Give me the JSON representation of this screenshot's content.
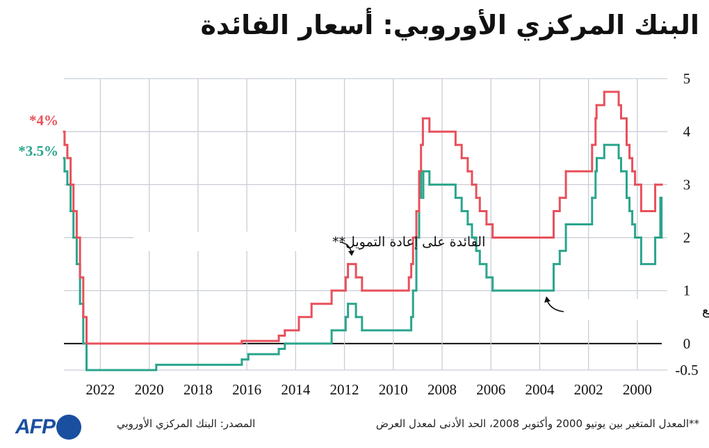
{
  "title": "البنك المركزي الأوروبي: أسعار الفائدة",
  "footer": {
    "source": "المصدر: البنك المركزي الأوروبي",
    "note": "**المعدل المتغير بين يونيو 2000 وأكتوبر 2008، الحد الأدنى لمعدل العرض",
    "logo": "AFP"
  },
  "colors": {
    "refi": "#e8505b",
    "deposit": "#2aa58c",
    "grid": "#c9cdd6",
    "zero": "#111111"
  },
  "chart_data": {
    "type": "line",
    "step": true,
    "x_reversed": true,
    "xlim": [
      "1999-01-01",
      "2023-06-30"
    ],
    "ylim": [
      -0.5,
      5
    ],
    "grid": true,
    "x_ticks": [
      "2022",
      "2020",
      "2018",
      "2016",
      "2014",
      "2012",
      "2010",
      "2008",
      "2006",
      "2004",
      "2002",
      "2000"
    ],
    "y_ticks": [
      "5",
      "4",
      "3",
      "2",
      "1",
      "0",
      "-0.5"
    ],
    "y_axis_side": "right",
    "annotations": {
      "refi": "الفائدة على إعادة التمويل**",
      "deposit": "الفائدة على الودائع",
      "refi_end": "*4%",
      "deposit_end": "*3.5%"
    },
    "series": [
      {
        "key": "refi",
        "name": "الفائدة على إعادة التمويل**",
        "points": [
          [
            "1999-01-01",
            3.0
          ],
          [
            "1999-04-09",
            2.5
          ],
          [
            "1999-11-05",
            3.0
          ],
          [
            "2000-02-04",
            3.25
          ],
          [
            "2000-03-17",
            3.5
          ],
          [
            "2000-04-28",
            3.75
          ],
          [
            "2000-06-09",
            4.25
          ],
          [
            "2000-09-01",
            4.5
          ],
          [
            "2000-10-06",
            4.75
          ],
          [
            "2001-05-11",
            4.5
          ],
          [
            "2001-09-03",
            4.25
          ],
          [
            "2001-09-18",
            3.75
          ],
          [
            "2001-11-09",
            3.25
          ],
          [
            "2002-12-06",
            2.75
          ],
          [
            "2003-03-07",
            2.5
          ],
          [
            "2003-06-06",
            2.0
          ],
          [
            "2005-12-06",
            2.25
          ],
          [
            "2006-03-08",
            2.5
          ],
          [
            "2006-06-15",
            2.75
          ],
          [
            "2006-08-09",
            3.0
          ],
          [
            "2006-10-11",
            3.25
          ],
          [
            "2006-12-13",
            3.5
          ],
          [
            "2007-03-14",
            3.75
          ],
          [
            "2007-06-13",
            4.0
          ],
          [
            "2008-07-09",
            4.25
          ],
          [
            "2008-10-15",
            3.75
          ],
          [
            "2008-11-12",
            3.25
          ],
          [
            "2008-12-10",
            2.5
          ],
          [
            "2009-01-21",
            2.0
          ],
          [
            "2009-03-11",
            1.5
          ],
          [
            "2009-04-08",
            1.25
          ],
          [
            "2009-05-13",
            1.0
          ],
          [
            "2011-04-13",
            1.25
          ],
          [
            "2011-07-13",
            1.5
          ],
          [
            "2011-11-09",
            1.25
          ],
          [
            "2011-12-14",
            1.0
          ],
          [
            "2012-07-11",
            0.75
          ],
          [
            "2013-05-08",
            0.5
          ],
          [
            "2013-11-13",
            0.25
          ],
          [
            "2014-06-11",
            0.15
          ],
          [
            "2014-09-10",
            0.05
          ],
          [
            "2016-03-16",
            0.0
          ],
          [
            "2022-07-27",
            0.5
          ],
          [
            "2022-09-14",
            1.25
          ],
          [
            "2022-11-02",
            2.0
          ],
          [
            "2022-12-21",
            2.5
          ],
          [
            "2023-02-08",
            3.0
          ],
          [
            "2023-03-22",
            3.5
          ],
          [
            "2023-05-10",
            3.75
          ],
          [
            "2023-06-21",
            4.0
          ]
        ]
      },
      {
        "key": "deposit",
        "name": "الفائدة على الودائع",
        "points": [
          [
            "1999-01-01",
            2.0
          ],
          [
            "1999-01-04",
            2.75
          ],
          [
            "1999-01-22",
            2.0
          ],
          [
            "1999-04-09",
            1.5
          ],
          [
            "1999-11-05",
            2.0
          ],
          [
            "2000-02-04",
            2.25
          ],
          [
            "2000-03-17",
            2.5
          ],
          [
            "2000-04-28",
            2.75
          ],
          [
            "2000-06-09",
            3.25
          ],
          [
            "2000-09-01",
            3.5
          ],
          [
            "2000-10-06",
            3.75
          ],
          [
            "2001-05-11",
            3.5
          ],
          [
            "2001-08-31",
            3.25
          ],
          [
            "2001-09-18",
            2.75
          ],
          [
            "2001-11-09",
            2.25
          ],
          [
            "2002-12-06",
            1.75
          ],
          [
            "2003-03-07",
            1.5
          ],
          [
            "2003-06-06",
            1.0
          ],
          [
            "2005-12-06",
            1.25
          ],
          [
            "2006-03-08",
            1.5
          ],
          [
            "2006-06-15",
            1.75
          ],
          [
            "2006-08-09",
            2.0
          ],
          [
            "2006-10-11",
            2.25
          ],
          [
            "2006-12-13",
            2.5
          ],
          [
            "2007-03-14",
            2.75
          ],
          [
            "2007-06-13",
            3.0
          ],
          [
            "2008-07-09",
            3.25
          ],
          [
            "2008-10-08",
            2.75
          ],
          [
            "2008-10-09",
            3.25
          ],
          [
            "2008-11-12",
            2.75
          ],
          [
            "2008-12-10",
            2.0
          ],
          [
            "2009-01-21",
            1.0
          ],
          [
            "2009-03-11",
            0.5
          ],
          [
            "2009-04-08",
            0.25
          ],
          [
            "2011-04-13",
            0.5
          ],
          [
            "2011-07-13",
            0.75
          ],
          [
            "2011-11-09",
            0.5
          ],
          [
            "2011-12-14",
            0.25
          ],
          [
            "2012-07-11",
            0.0
          ],
          [
            "2014-06-11",
            -0.1
          ],
          [
            "2014-09-10",
            -0.2
          ],
          [
            "2015-12-09",
            -0.3
          ],
          [
            "2016-03-16",
            -0.4
          ],
          [
            "2019-09-18",
            -0.5
          ],
          [
            "2022-07-27",
            0.0
          ],
          [
            "2022-09-14",
            0.75
          ],
          [
            "2022-11-02",
            1.5
          ],
          [
            "2022-12-21",
            2.0
          ],
          [
            "2023-02-08",
            2.5
          ],
          [
            "2023-03-22",
            3.0
          ],
          [
            "2023-05-10",
            3.25
          ],
          [
            "2023-06-21",
            3.5
          ]
        ]
      }
    ]
  }
}
